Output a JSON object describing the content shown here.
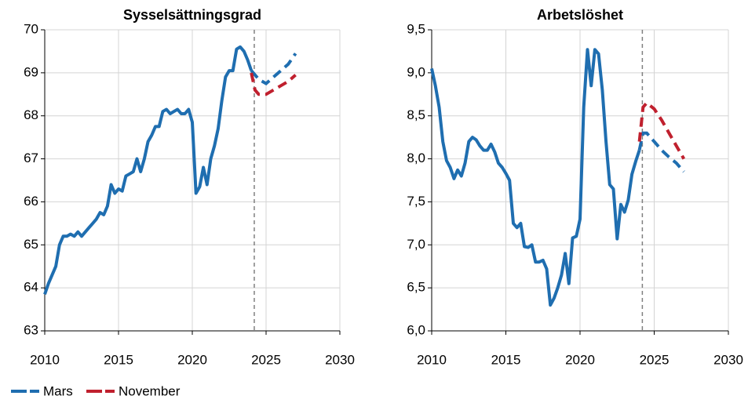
{
  "chart_data": [
    {
      "type": "line",
      "title": "Sysselsättningsgrad",
      "xlim": [
        2010,
        2030
      ],
      "xticks": [
        2010,
        2015,
        2020,
        2025,
        2030
      ],
      "ylim": [
        63,
        70
      ],
      "yticks": [
        63,
        64,
        65,
        66,
        67,
        68,
        69,
        70
      ],
      "grid": true,
      "vline": 2024.2,
      "series": [
        {
          "name": "Mars",
          "color": "#1f6eb0",
          "x": [
            2010,
            2010.25,
            2010.5,
            2010.75,
            2011,
            2011.25,
            2011.5,
            2011.75,
            2012,
            2012.25,
            2012.5,
            2012.75,
            2013,
            2013.25,
            2013.5,
            2013.75,
            2014,
            2014.25,
            2014.5,
            2014.75,
            2015,
            2015.25,
            2015.5,
            2015.75,
            2016,
            2016.25,
            2016.5,
            2016.75,
            2017,
            2017.25,
            2017.5,
            2017.75,
            2018,
            2018.25,
            2018.5,
            2018.75,
            2019,
            2019.25,
            2019.5,
            2019.75,
            2020,
            2020.25,
            2020.5,
            2020.75,
            2021,
            2021.25,
            2021.5,
            2021.75,
            2022,
            2022.25,
            2022.5,
            2022.75,
            2023,
            2023.25,
            2023.5,
            2023.75,
            2024
          ],
          "values": [
            63.85,
            64.1,
            64.3,
            64.5,
            65.0,
            65.2,
            65.2,
            65.25,
            65.2,
            65.3,
            65.2,
            65.3,
            65.4,
            65.5,
            65.6,
            65.75,
            65.7,
            65.9,
            66.4,
            66.2,
            66.3,
            66.25,
            66.6,
            66.65,
            66.7,
            67.0,
            66.7,
            67.0,
            67.4,
            67.55,
            67.75,
            67.75,
            68.1,
            68.15,
            68.05,
            68.1,
            68.15,
            68.05,
            68.05,
            68.15,
            67.85,
            66.2,
            66.35,
            66.8,
            66.4,
            67.0,
            67.3,
            67.7,
            68.35,
            68.9,
            69.05,
            69.05,
            69.55,
            69.6,
            69.5,
            69.3,
            69.05
          ],
          "forecast_x": [
            2024,
            2024.5,
            2025,
            2025.5,
            2026,
            2026.5,
            2027
          ],
          "forecast": [
            69.05,
            68.85,
            68.75,
            68.9,
            69.05,
            69.2,
            69.45
          ]
        },
        {
          "name": "November",
          "color": "#c0202e",
          "forecast_x": [
            2024,
            2024.25,
            2024.5,
            2025,
            2025.5,
            2026,
            2026.5,
            2027
          ],
          "forecast": [
            69.0,
            68.6,
            68.5,
            68.5,
            68.6,
            68.7,
            68.8,
            68.95
          ]
        }
      ]
    },
    {
      "type": "line",
      "title": "Arbetslöshet",
      "xlim": [
        2010,
        2030
      ],
      "xticks": [
        2010,
        2015,
        2020,
        2025,
        2030
      ],
      "ylim": [
        6,
        9.5
      ],
      "yticks": [
        {
          "value": 6,
          "label": "6,0"
        },
        {
          "value": 6.5,
          "label": "6,5"
        },
        {
          "value": 7,
          "label": "7,0"
        },
        {
          "value": 7.5,
          "label": "7,5"
        },
        {
          "value": 8,
          "label": "8,0"
        },
        {
          "value": 8.5,
          "label": "8,5"
        },
        {
          "value": 9,
          "label": "9,0"
        },
        {
          "value": 9.5,
          "label": "9,5"
        }
      ],
      "grid": true,
      "vline": 2024.2,
      "series": [
        {
          "color": "#1f6eb0",
          "x": [
            2010,
            2010.25,
            2010.5,
            2010.75,
            2011,
            2011.25,
            2011.5,
            2011.75,
            2012,
            2012.25,
            2012.5,
            2012.75,
            2013,
            2013.25,
            2013.5,
            2013.75,
            2014,
            2014.25,
            2014.5,
            2014.75,
            2015,
            2015.25,
            2015.5,
            2015.75,
            2016,
            2016.25,
            2016.5,
            2016.75,
            2017,
            2017.25,
            2017.5,
            2017.75,
            2018,
            2018.25,
            2018.5,
            2018.75,
            2019,
            2019.25,
            2019.5,
            2019.75,
            2020,
            2020.25,
            2020.5,
            2020.75,
            2021,
            2021.25,
            2021.5,
            2021.75,
            2022,
            2022.25,
            2022.5,
            2022.75,
            2023,
            2023.25,
            2023.5,
            2023.75,
            2024
          ],
          "values": [
            9.05,
            8.85,
            8.6,
            8.2,
            7.98,
            7.9,
            7.77,
            7.87,
            7.8,
            7.95,
            8.2,
            8.25,
            8.22,
            8.15,
            8.1,
            8.1,
            8.17,
            8.08,
            7.95,
            7.9,
            7.83,
            7.75,
            7.25,
            7.2,
            7.25,
            6.98,
            6.97,
            7.0,
            6.8,
            6.8,
            6.82,
            6.72,
            6.3,
            6.38,
            6.5,
            6.65,
            6.9,
            6.55,
            7.08,
            7.1,
            7.3,
            8.6,
            9.27,
            8.85,
            9.27,
            9.22,
            8.8,
            8.2,
            7.7,
            7.65,
            7.07,
            7.47,
            7.38,
            7.52,
            7.82,
            7.97,
            8.1
          ],
          "forecast_x": [
            2024,
            2024.25,
            2024.5,
            2025,
            2025.5,
            2026,
            2026.5,
            2027
          ],
          "forecast": [
            8.1,
            8.3,
            8.3,
            8.2,
            8.1,
            8.02,
            7.95,
            7.85
          ]
        },
        {
          "color": "#c0202e",
          "forecast_x": [
            2024,
            2024.25,
            2024.5,
            2025,
            2025.5,
            2026,
            2026.5,
            2027
          ],
          "forecast": [
            8.2,
            8.6,
            8.65,
            8.58,
            8.45,
            8.3,
            8.15,
            8.0
          ]
        }
      ]
    }
  ]
}
